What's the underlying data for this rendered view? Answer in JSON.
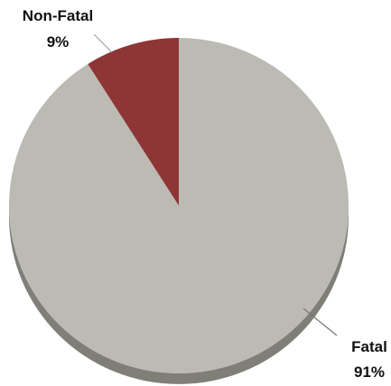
{
  "chart_data": {
    "type": "pie",
    "style": "3d",
    "slices": [
      {
        "label": "Fatal",
        "percent_label": "91%",
        "value": 91,
        "color": "#bbbbb4",
        "side_color": "#7f7f77"
      },
      {
        "label": "Non-Fatal",
        "percent_label": "9%",
        "value": 9,
        "color": "#8e3536",
        "side_color": "#5e2020"
      }
    ],
    "start_angle": "12 o'clock",
    "direction": "clockwise",
    "labels": "outside with leader lines"
  }
}
